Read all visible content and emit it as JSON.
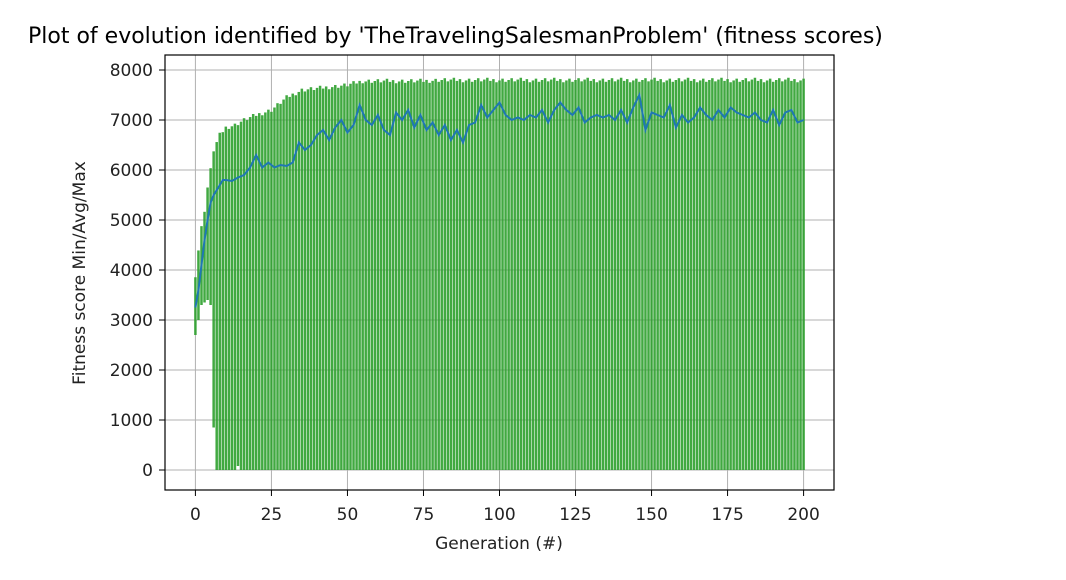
{
  "chart_data": {
    "type": "bar",
    "title": "Plot of evolution identified by 'TheTravelingSalesmanProblem' (fitness scores)",
    "xlabel": "Generation (#)",
    "ylabel": "Fitness score Min/Avg/Max",
    "xlim": [
      -10,
      210
    ],
    "ylim": [
      -400,
      8300
    ],
    "grid": true,
    "x_ticks": [
      0,
      25,
      50,
      75,
      100,
      125,
      150,
      175,
      200
    ],
    "y_ticks": [
      0,
      1000,
      2000,
      3000,
      4000,
      5000,
      6000,
      7000,
      8000
    ],
    "colors": {
      "bars": "#2ca02c",
      "avg_line": "#1f77b4",
      "grid": "#b0b0b0"
    },
    "series": [
      {
        "name": "Max",
        "type": "bar",
        "x_range": [
          0,
          200
        ],
        "keypoints": [
          [
            0,
            3900
          ],
          [
            1,
            4400
          ],
          [
            2,
            4850
          ],
          [
            3,
            5200
          ],
          [
            4,
            5650
          ],
          [
            5,
            6000
          ],
          [
            6,
            6400
          ],
          [
            7,
            6550
          ],
          [
            8,
            6700
          ],
          [
            10,
            6850
          ],
          [
            13,
            6900
          ],
          [
            16,
            7000
          ],
          [
            20,
            7100
          ],
          [
            25,
            7200
          ],
          [
            30,
            7450
          ],
          [
            35,
            7600
          ],
          [
            50,
            7700
          ],
          [
            55,
            7780
          ],
          [
            75,
            7780
          ],
          [
            80,
            7800
          ],
          [
            200,
            7800
          ]
        ]
      },
      {
        "name": "Min",
        "type": "bar_bottom",
        "x_range": [
          0,
          200
        ],
        "keypoints": [
          [
            0,
            2700
          ],
          [
            1,
            3000
          ],
          [
            2,
            3300
          ],
          [
            3,
            3350
          ],
          [
            4,
            3400
          ],
          [
            5,
            3300
          ],
          [
            6,
            850
          ],
          [
            7,
            0
          ],
          [
            13,
            0
          ],
          [
            14,
            80
          ],
          [
            15,
            0
          ],
          [
            200,
            0
          ]
        ]
      },
      {
        "name": "Avg",
        "type": "line",
        "points": [
          [
            0,
            3250
          ],
          [
            1,
            3600
          ],
          [
            2,
            4100
          ],
          [
            3,
            4600
          ],
          [
            4,
            5000
          ],
          [
            5,
            5350
          ],
          [
            6,
            5500
          ],
          [
            7,
            5600
          ],
          [
            8,
            5700
          ],
          [
            9,
            5800
          ],
          [
            10,
            5800
          ],
          [
            12,
            5780
          ],
          [
            14,
            5850
          ],
          [
            16,
            5900
          ],
          [
            18,
            6050
          ],
          [
            20,
            6300
          ],
          [
            22,
            6050
          ],
          [
            24,
            6150
          ],
          [
            26,
            6050
          ],
          [
            28,
            6100
          ],
          [
            30,
            6080
          ],
          [
            32,
            6150
          ],
          [
            34,
            6550
          ],
          [
            36,
            6400
          ],
          [
            38,
            6500
          ],
          [
            40,
            6700
          ],
          [
            42,
            6800
          ],
          [
            44,
            6600
          ],
          [
            46,
            6850
          ],
          [
            48,
            7000
          ],
          [
            50,
            6750
          ],
          [
            52,
            6900
          ],
          [
            54,
            7300
          ],
          [
            56,
            7000
          ],
          [
            58,
            6900
          ],
          [
            60,
            7100
          ],
          [
            62,
            6800
          ],
          [
            64,
            6700
          ],
          [
            66,
            7150
          ],
          [
            68,
            7000
          ],
          [
            70,
            7200
          ],
          [
            72,
            6850
          ],
          [
            74,
            7100
          ],
          [
            76,
            6800
          ],
          [
            78,
            6950
          ],
          [
            80,
            6700
          ],
          [
            82,
            6900
          ],
          [
            84,
            6600
          ],
          [
            86,
            6800
          ],
          [
            88,
            6550
          ],
          [
            90,
            6900
          ],
          [
            92,
            6950
          ],
          [
            94,
            7300
          ],
          [
            96,
            7050
          ],
          [
            98,
            7200
          ],
          [
            100,
            7350
          ],
          [
            102,
            7100
          ],
          [
            104,
            7000
          ],
          [
            106,
            7050
          ],
          [
            108,
            7000
          ],
          [
            110,
            7100
          ],
          [
            112,
            7050
          ],
          [
            114,
            7200
          ],
          [
            116,
            6950
          ],
          [
            118,
            7200
          ],
          [
            120,
            7350
          ],
          [
            122,
            7200
          ],
          [
            124,
            7100
          ],
          [
            126,
            7250
          ],
          [
            128,
            6950
          ],
          [
            130,
            7050
          ],
          [
            132,
            7100
          ],
          [
            134,
            7050
          ],
          [
            136,
            7100
          ],
          [
            138,
            7000
          ],
          [
            140,
            7200
          ],
          [
            142,
            6950
          ],
          [
            144,
            7250
          ],
          [
            146,
            7500
          ],
          [
            148,
            6800
          ],
          [
            150,
            7150
          ],
          [
            152,
            7100
          ],
          [
            154,
            7050
          ],
          [
            156,
            7300
          ],
          [
            158,
            6850
          ],
          [
            160,
            7100
          ],
          [
            162,
            6950
          ],
          [
            164,
            7050
          ],
          [
            166,
            7250
          ],
          [
            168,
            7100
          ],
          [
            170,
            7000
          ],
          [
            172,
            7200
          ],
          [
            174,
            7050
          ],
          [
            176,
            7250
          ],
          [
            178,
            7150
          ],
          [
            180,
            7100
          ],
          [
            182,
            7050
          ],
          [
            184,
            7150
          ],
          [
            186,
            7000
          ],
          [
            188,
            6950
          ],
          [
            190,
            7200
          ],
          [
            192,
            6900
          ],
          [
            194,
            7150
          ],
          [
            196,
            7200
          ],
          [
            198,
            6950
          ],
          [
            200,
            7000
          ]
        ]
      }
    ]
  }
}
